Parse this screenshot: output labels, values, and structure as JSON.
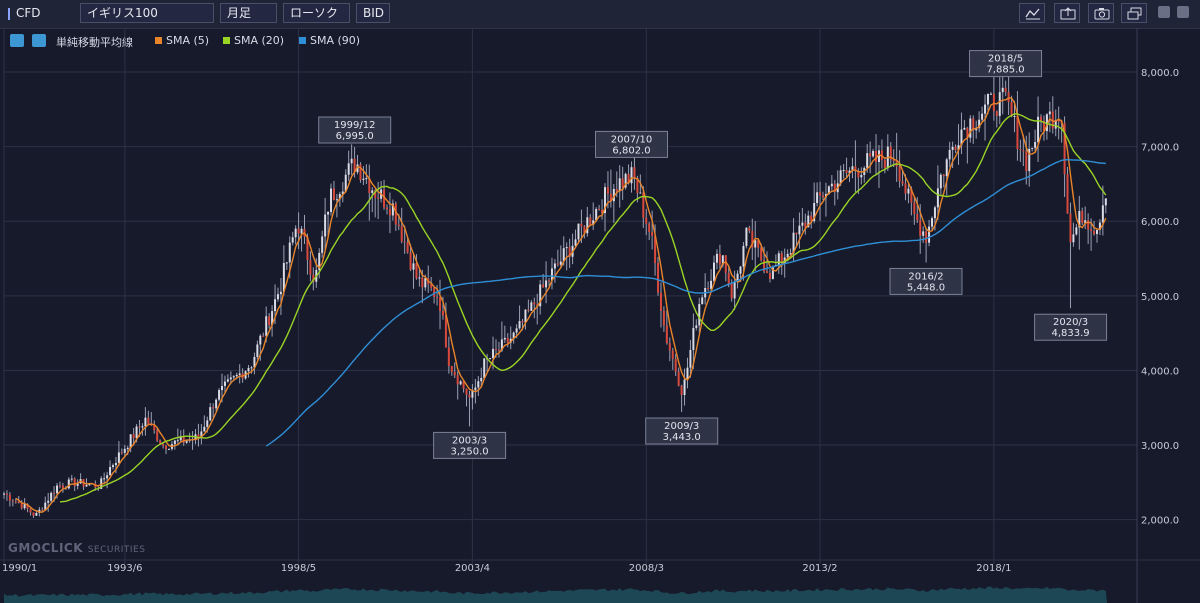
{
  "toolbar": {
    "market": "CFD",
    "symbol": "イギリス100",
    "timeframe": "月足",
    "chart_style": "ローソク",
    "price_side": "BID",
    "icons": [
      "indicator-icon",
      "export-icon",
      "camera-icon",
      "window-icon",
      "minimize-icon",
      "close-icon"
    ]
  },
  "legend": {
    "indicator_name": "単純移動平均線",
    "items": [
      {
        "label": "SMA (5)",
        "color": "#e8842a"
      },
      {
        "label": "SMA (20)",
        "color": "#9ad425"
      },
      {
        "label": "SMA (90)",
        "color": "#2f8fd6"
      }
    ]
  },
  "watermark": {
    "brand": "GMOCLICK",
    "suffix": "SECURITIES"
  },
  "chart_data": {
    "type": "candlestick",
    "title": "",
    "xlabel": "",
    "ylabel": "",
    "ylim": [
      1580,
      8590
    ],
    "yticks": [
      "8,000.0",
      "7,000.0",
      "6,000.0",
      "5,000.0",
      "4,000.0",
      "3,000.0",
      "2,000.0"
    ],
    "ytick_values": [
      8000,
      7000,
      6000,
      5000,
      4000,
      3000,
      2000
    ],
    "xticks": [
      {
        "label": "1990/1",
        "year": 1990.0
      },
      {
        "label": "1993/6",
        "year": 1993.42
      },
      {
        "label": "1998/5",
        "year": 1998.33
      },
      {
        "label": "2003/4",
        "year": 2003.25
      },
      {
        "label": "2008/3",
        "year": 2008.17
      },
      {
        "label": "2013/2",
        "year": 2013.08
      },
      {
        "label": "2018/1",
        "year": 2018.0
      }
    ],
    "x_range": [
      1990.0,
      2021.2
    ],
    "grid": true,
    "colors": {
      "up": "#d9dbe6",
      "down": "#d94a3e",
      "wick": "#9aa0b5",
      "grid": "#2c3147",
      "volume": "#1f4d5a"
    },
    "price_path": [
      [
        1990.0,
        2350
      ],
      [
        1990.5,
        2200
      ],
      [
        1990.9,
        2050
      ],
      [
        1991.5,
        2450
      ],
      [
        1992.0,
        2500
      ],
      [
        1992.7,
        2450
      ],
      [
        1993.0,
        2700
      ],
      [
        1994.0,
        3350
      ],
      [
        1994.5,
        3000
      ],
      [
        1995.5,
        3100
      ],
      [
        1996.0,
        3650
      ],
      [
        1997.0,
        4100
      ],
      [
        1997.8,
        5100
      ],
      [
        1998.3,
        6000
      ],
      [
        1998.8,
        5200
      ],
      [
        1999.2,
        6300
      ],
      [
        1999.95,
        6800
      ],
      [
        2000.5,
        6400
      ],
      [
        2001.0,
        6200
      ],
      [
        2001.7,
        5200
      ],
      [
        2002.3,
        5000
      ],
      [
        2002.6,
        4100
      ],
      [
        2003.2,
        3600
      ],
      [
        2003.6,
        4100
      ],
      [
        2004.5,
        4500
      ],
      [
        2005.5,
        5300
      ],
      [
        2006.5,
        6000
      ],
      [
        2007.3,
        6500
      ],
      [
        2007.8,
        6600
      ],
      [
        2008.3,
        5800
      ],
      [
        2008.7,
        4500
      ],
      [
        2009.2,
        3700
      ],
      [
        2009.7,
        5000
      ],
      [
        2010.3,
        5600
      ],
      [
        2010.6,
        5000
      ],
      [
        2011.0,
        5800
      ],
      [
        2011.7,
        5300
      ],
      [
        2012.3,
        5700
      ],
      [
        2013.2,
        6400
      ],
      [
        2014.0,
        6700
      ],
      [
        2015.2,
        6900
      ],
      [
        2015.7,
        6100
      ],
      [
        2016.1,
        5800
      ],
      [
        2016.5,
        6600
      ],
      [
        2017.0,
        7200
      ],
      [
        2018.0,
        7600
      ],
      [
        2018.35,
        7600
      ],
      [
        2018.9,
        6800
      ],
      [
        2019.3,
        7300
      ],
      [
        2019.9,
        7500
      ],
      [
        2020.15,
        5700
      ],
      [
        2020.5,
        6100
      ],
      [
        2020.9,
        5900
      ],
      [
        2021.2,
        6500
      ]
    ],
    "series": [
      {
        "name": "SMA (5)",
        "window": 5
      },
      {
        "name": "SMA (20)",
        "window": 20
      },
      {
        "name": "SMA (90)",
        "window": 90
      }
    ],
    "annotations": [
      {
        "date": "1999/12",
        "value": "6,995.0",
        "year": 1999.92,
        "price": 6995,
        "position": "above"
      },
      {
        "date": "2003/3",
        "value": "3,250.0",
        "year": 2003.17,
        "price": 3250,
        "position": "below"
      },
      {
        "date": "2007/10",
        "value": "6,802.0",
        "year": 2007.75,
        "price": 6802,
        "position": "above"
      },
      {
        "date": "2009/3",
        "value": "3,443.0",
        "year": 2009.17,
        "price": 3443,
        "position": "below"
      },
      {
        "date": "2016/2",
        "value": "5,448.0",
        "year": 2016.08,
        "price": 5448,
        "position": "below"
      },
      {
        "date": "2018/5",
        "value": "7,885.0",
        "year": 2018.33,
        "price": 7885,
        "position": "above"
      },
      {
        "date": "2020/3",
        "value": "4,833.9",
        "year": 2020.17,
        "price": 4833.9,
        "position": "below"
      }
    ]
  }
}
